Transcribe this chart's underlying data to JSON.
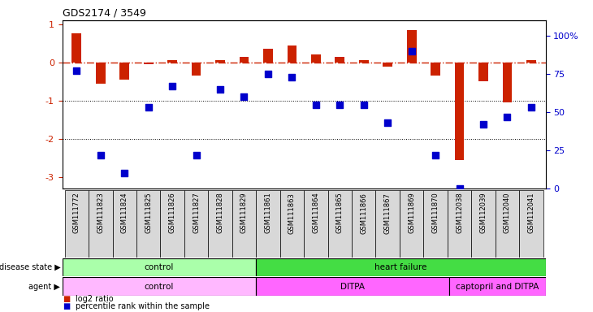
{
  "title": "GDS2174 / 3549",
  "samples": [
    "GSM111772",
    "GSM111823",
    "GSM111824",
    "GSM111825",
    "GSM111826",
    "GSM111827",
    "GSM111828",
    "GSM111829",
    "GSM111861",
    "GSM111863",
    "GSM111864",
    "GSM111865",
    "GSM111866",
    "GSM111867",
    "GSM111869",
    "GSM111870",
    "GSM112038",
    "GSM112039",
    "GSM112040",
    "GSM112041"
  ],
  "log2_ratio": [
    0.75,
    -0.55,
    -0.45,
    -0.05,
    0.05,
    -0.35,
    0.05,
    0.15,
    0.35,
    0.45,
    0.2,
    0.15,
    0.05,
    -0.1,
    0.85,
    -0.35,
    -2.55,
    -0.5,
    -1.05,
    0.05
  ],
  "percentile_rank": [
    77,
    22,
    10,
    53,
    67,
    22,
    65,
    60,
    75,
    73,
    55,
    55,
    55,
    43,
    90,
    22,
    0,
    42,
    47,
    53
  ],
  "bar_color": "#cc2200",
  "dot_color": "#0000cc",
  "dashed_line_color": "#cc2200",
  "ytick_color_left": "#cc2200",
  "ytick_color_right": "#0000cc",
  "ylim_left": [
    -3.3,
    1.1
  ],
  "ylim_right": [
    0,
    110
  ],
  "yticks_left": [
    1,
    0,
    -1,
    -2,
    -3
  ],
  "yticks_right": [
    100,
    75,
    50,
    25,
    0
  ],
  "ytick_labels_right": [
    "100%",
    "75",
    "50",
    "25",
    "0"
  ],
  "ds_groups": [
    {
      "label": "control",
      "start": 0,
      "end": 8,
      "color": "#aaffaa"
    },
    {
      "label": "heart failure",
      "start": 8,
      "end": 20,
      "color": "#44dd44"
    }
  ],
  "ag_groups": [
    {
      "label": "control",
      "start": 0,
      "end": 8,
      "color": "#ffb8ff"
    },
    {
      "label": "DITPA",
      "start": 8,
      "end": 16,
      "color": "#ff66ff"
    },
    {
      "label": "captopril and DITPA",
      "start": 16,
      "end": 20,
      "color": "#ff66ff"
    }
  ],
  "legend_log2": "log2 ratio",
  "legend_pct": "percentile rank within the sample"
}
